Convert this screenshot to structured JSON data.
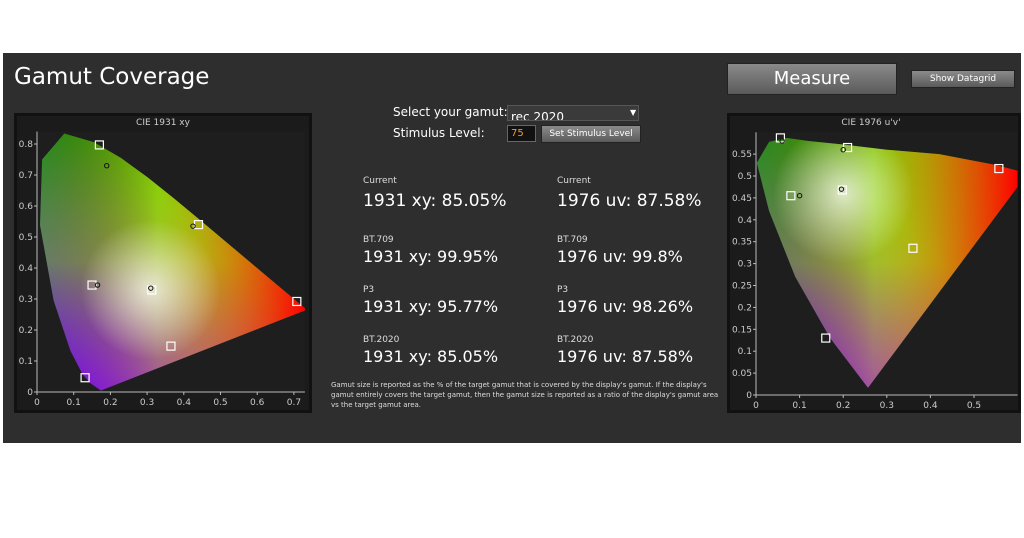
{
  "header": {
    "title": "Gamut Coverage",
    "measure_button": "Measure",
    "datagrid_button": "Show Datagrid"
  },
  "controls": {
    "gamut_label": "Select your gamut:",
    "gamut_value": "rec 2020",
    "stimulus_label": "Stimulus Level:",
    "stimulus_value": "75",
    "stimulus_button": "Set Stimulus Level"
  },
  "results": {
    "columns": [
      {
        "groups": [
          {
            "label": "Current",
            "value": "1931 xy: 85.05%"
          },
          {
            "label": "BT.709",
            "value": "1931 xy: 99.95%"
          },
          {
            "label": "P3",
            "value": "1931 xy: 95.77%"
          },
          {
            "label": "BT.2020",
            "value": "1931 xy: 85.05%"
          }
        ]
      },
      {
        "groups": [
          {
            "label": "Current",
            "value": "1976 uv: 87.58%"
          },
          {
            "label": "BT.709",
            "value": "1976 uv: 99.8%"
          },
          {
            "label": "P3",
            "value": "1976 uv: 98.26%"
          },
          {
            "label": "BT.2020",
            "value": "1976 uv: 87.58%"
          }
        ]
      }
    ]
  },
  "note": "Gamut size is reported as the % of the target gamut that is covered by the display's gamut. If the display's gamut entirely covers the target gamut, then the gamut size is reported as a ratio of the display's gamut area vs the target gamut area.",
  "charts": [
    {
      "title": "CIE 1931 xy",
      "xlim": [
        0,
        0.73
      ],
      "ylim": [
        0,
        0.84
      ],
      "xticks": [
        0,
        0.1,
        0.2,
        0.3,
        0.4,
        0.5,
        0.6,
        0.7
      ],
      "yticks": [
        0,
        0.1,
        0.2,
        0.3,
        0.4,
        0.5,
        0.6,
        0.7,
        0.8
      ],
      "targets": {
        "x": [
          0.17,
          0.131,
          0.708,
          0.3127,
          0.44,
          0.15,
          0.365
        ],
        "y": [
          0.797,
          0.046,
          0.292,
          0.329,
          0.54,
          0.345,
          0.148
        ]
      },
      "measured": {
        "x": [
          0.19,
          0.425,
          0.165,
          0.31
        ],
        "y": [
          0.73,
          0.535,
          0.345,
          0.335
        ]
      }
    },
    {
      "title": "CIE 1976 u'v'",
      "xlim": [
        0,
        0.6
      ],
      "ylim": [
        0,
        0.6
      ],
      "xticks": [
        0,
        0.1,
        0.2,
        0.3,
        0.4,
        0.5
      ],
      "yticks": [
        0,
        0.05,
        0.1,
        0.15,
        0.2,
        0.25,
        0.3,
        0.35,
        0.4,
        0.45,
        0.5,
        0.55
      ],
      "targets": {
        "x": [
          0.056,
          0.16,
          0.557,
          0.198,
          0.21,
          0.36,
          0.08
        ],
        "y": [
          0.587,
          0.13,
          0.517,
          0.468,
          0.565,
          0.335,
          0.455
        ]
      },
      "measured": {
        "x": [
          0.06,
          0.2,
          0.1,
          0.196
        ],
        "y": [
          0.58,
          0.56,
          0.455,
          0.47
        ]
      }
    }
  ]
}
